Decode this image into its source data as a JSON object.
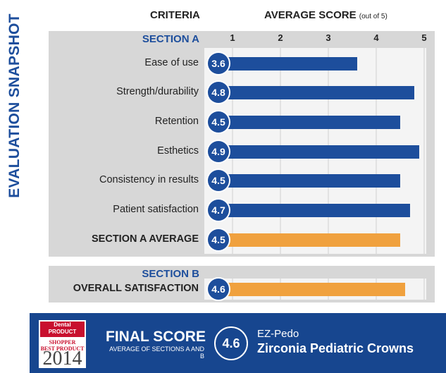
{
  "side_title": "EVALUATION SNAPSHOT",
  "headers": {
    "criteria": "CRITERIA",
    "score": "AVERAGE SCORE",
    "score_note": "(out of 5)"
  },
  "colors": {
    "bar": "#1d4e9c",
    "average_bar": "#f0a13e",
    "footer": "#17468f"
  },
  "chart_data": {
    "type": "bar",
    "orientation": "horizontal",
    "xlim": [
      1,
      5
    ],
    "ticks": [
      "1",
      "2",
      "3",
      "4",
      "5"
    ],
    "grid": true,
    "sections": [
      {
        "label": "SECTION A",
        "rows": [
          {
            "label": "Ease of use",
            "value": 3.6,
            "display": "3.6",
            "kind": "item"
          },
          {
            "label": "Strength/durability",
            "value": 4.8,
            "display": "4.8",
            "kind": "item"
          },
          {
            "label": "Retention",
            "value": 4.5,
            "display": "4.5",
            "kind": "item"
          },
          {
            "label": "Esthetics",
            "value": 4.9,
            "display": "4.9",
            "kind": "item"
          },
          {
            "label": "Consistency in results",
            "value": 4.5,
            "display": "4.5",
            "kind": "item"
          },
          {
            "label": "Patient satisfaction",
            "value": 4.7,
            "display": "4.7",
            "kind": "item"
          },
          {
            "label": "SECTION A AVERAGE",
            "value": 4.5,
            "display": "4.5",
            "kind": "average"
          }
        ]
      },
      {
        "label": "SECTION B",
        "rows": [
          {
            "label": "OVERALL SATISFACTION",
            "value": 4.6,
            "display": "4.6",
            "kind": "average"
          }
        ]
      }
    ]
  },
  "footer": {
    "logo": {
      "top_line1": "Dental",
      "top_line2": "PRODUCT",
      "top_line3": "SHOPPER",
      "best": "BEST PRODUCT",
      "year": "2014"
    },
    "final_label": "FINAL SCORE",
    "final_sub": "AVERAGE OF SECTIONS A AND B",
    "final_score": "4.6",
    "product_brand": "EZ-Pedo",
    "product_name": "Zirconia Pediatric Crowns"
  }
}
